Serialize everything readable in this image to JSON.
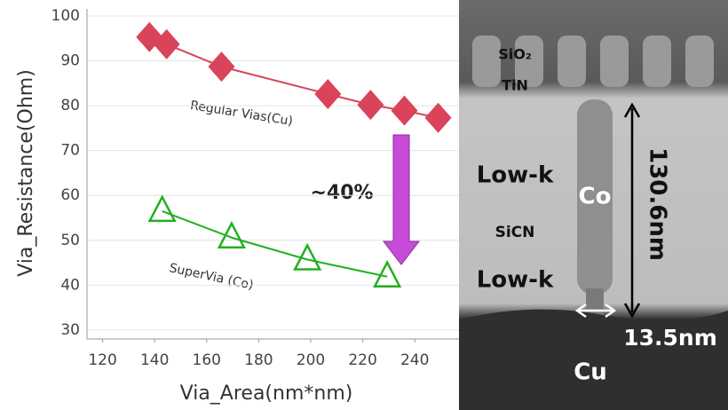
{
  "chart_data": {
    "type": "line",
    "x_label": "Via_Area(nm*nm)",
    "y_label": "Via_Resistance(Ohm)",
    "xlim": [
      114,
      257
    ],
    "xticks": [
      120,
      140,
      160,
      180,
      200,
      220,
      240
    ],
    "ylim": [
      28,
      100
    ],
    "yticks": [
      30,
      40,
      50,
      60,
      70,
      80,
      90,
      100
    ],
    "grid": true,
    "series": [
      {
        "name": "Regular Vias(Cu)",
        "color": "#d9445a",
        "marker": "diamond",
        "x": [
          138,
          144.6,
          165.7,
          206.6,
          223,
          236,
          249
        ],
        "values": [
          95.3,
          93.7,
          88.7,
          82.6,
          80.2,
          78.9,
          77.3
        ]
      },
      {
        "name": "SuperVia (Co)",
        "color": "#22b022",
        "marker": "triangle",
        "x": [
          142.9,
          169.6,
          198.7,
          229.4
        ],
        "values": [
          56.5,
          50.6,
          45.7,
          41.9
        ]
      }
    ],
    "annotation": "~40%"
  },
  "image_labels": {
    "sio2": "SiO₂",
    "tin": "TiN",
    "lowk_top": "Low-k",
    "sicn": "SiCN",
    "lowk_bottom": "Low-k",
    "co": "Co",
    "height": "130.6nm",
    "width": "13.5nm",
    "cu": "Cu"
  }
}
